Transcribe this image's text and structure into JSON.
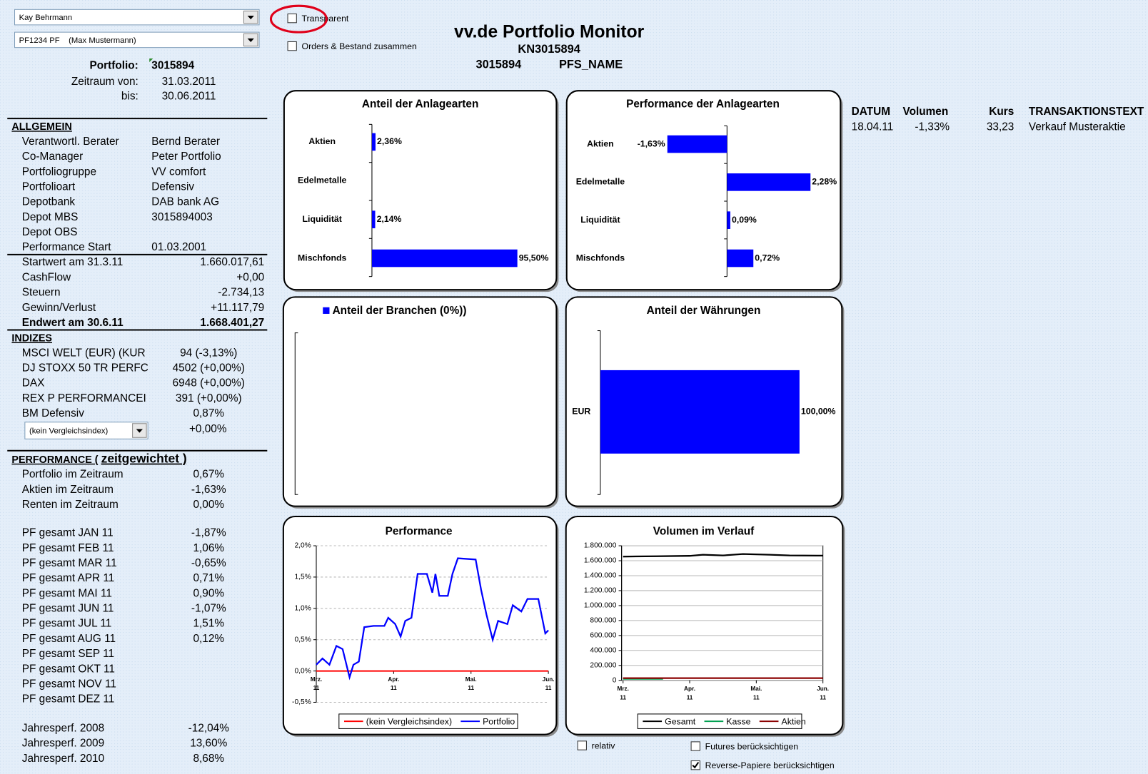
{
  "dropdowns": [
    "Kay Behrmann",
    "PF1234 PF    (Max Mustermann)"
  ],
  "checkboxes": [
    {
      "label": "Transparent",
      "checked": false
    },
    {
      "label": "Orders & Bestand zusammen",
      "checked": false
    },
    {
      "label": "relativ",
      "checked": false
    },
    {
      "label": "Futures berücksichtigen",
      "checked": false
    },
    {
      "label": "Reverse-Papiere berücksichtigen",
      "checked": true
    }
  ],
  "header": {
    "title": "vv.de Portfolio Monitor",
    "account": "KN3015894",
    "portfolio_id": "3015894",
    "portfolio_name": "PFS_NAME"
  },
  "left_panel": {
    "portfolio": [
      [
        "Portfolio:",
        "3015894"
      ],
      [
        "Zeitraum von:",
        "31.03.2011"
      ],
      [
        "bis:",
        "30.06.2011"
      ]
    ],
    "allgemein": {
      "title": "ALLGEMEIN",
      "rows": [
        [
          "Verantwortl. Berater",
          "Bernd Berater"
        ],
        [
          "Co-Manager",
          "Peter Portfolio"
        ],
        [
          "Portfoliogruppe",
          "VV comfort"
        ],
        [
          "Portfolioart",
          "Defensiv"
        ],
        [
          "Depotbank",
          "DAB bank AG"
        ],
        [
          "Depot MBS",
          "3015894003"
        ],
        [
          "Depot OBS"
        ],
        [
          "Performance Start",
          "01.03.2001"
        ]
      ]
    },
    "werte": {
      "rows": [
        [
          "Startwert am 31.3.11",
          "1.660.017,61"
        ],
        [
          "CashFlow",
          "+0,00"
        ],
        [
          "Steuern",
          "-2.734,13"
        ],
        [
          "Gewinn/Verlust",
          "+11.117,79"
        ],
        [
          "Endwert am 30.6.11",
          "1.668.401,27"
        ]
      ]
    },
    "indizes": {
      "title": "INDIZES",
      "rows": [
        [
          "MSCI WELT (EUR) (KUR",
          "94 (-3,13%)"
        ],
        [
          "DJ STOXX 50 TR PERFC",
          "4502 (+0,00%)"
        ],
        [
          "DAX",
          "6948 (+0,00%)"
        ],
        [
          "REX P PERFORMANCEI",
          "391 (+0,00%)"
        ],
        [
          "BM Defensiv",
          "0,87%"
        ]
      ],
      "comparison": {
        "dropdown": "(kein Vergleichsindex)",
        "value": "+0,00%"
      }
    },
    "performance": {
      "title": "PERFORMANCE (",
      "title_suffix": "zeitgewichtet )",
      "rows": [
        [
          "Portfolio im Zeitraum",
          "0,67%"
        ],
        [
          "Aktien im Zeitraum",
          "-1,63%"
        ],
        [
          "Renten im Zeitraum",
          "0,00%"
        ]
      ],
      "monthly": [
        [
          "PF gesamt JAN 11",
          "-1,87%"
        ],
        [
          "PF gesamt FEB 11",
          "1,06%"
        ],
        [
          "PF gesamt MAR 11",
          "-0,65%"
        ],
        [
          "PF gesamt APR 11",
          "0,71%"
        ],
        [
          "PF gesamt MAI 11",
          "0,90%"
        ],
        [
          "PF gesamt JUN 11",
          "-1,07%"
        ],
        [
          "PF gesamt JUL 11",
          "1,51%"
        ],
        [
          "PF gesamt AUG 11",
          "0,12%"
        ],
        [
          "PF gesamt SEP 11"
        ],
        [
          "PF gesamt OKT 11"
        ],
        [
          "PF gesamt NOV 11"
        ],
        [
          "PF gesamt DEZ 11"
        ]
      ],
      "yearly": [
        [
          "Jahresperf. 2008",
          "-12,04%"
        ],
        [
          "Jahresperf. 2009",
          "13,60%"
        ],
        [
          "Jahresperf. 2010",
          "8,68%"
        ]
      ]
    }
  },
  "transactions": {
    "columns": [
      "DATUM",
      "Volumen",
      "Kurs",
      "TRANSAKTIONSTEXT"
    ],
    "rows": [
      [
        "18.04.11",
        "-1,33%",
        "33,23",
        "Verkauf Musteraktie"
      ]
    ]
  },
  "chart_data": [
    {
      "type": "bar",
      "orientation": "horizontal",
      "title": "Anteil der Anlagearten",
      "categories": [
        "Aktien",
        "Edelmetalle",
        "Liquidität",
        "Mischfonds"
      ],
      "values": [
        2.36,
        0,
        2.14,
        95.5
      ],
      "value_labels": [
        "2,36%",
        null,
        "2,14%",
        "95,50%"
      ],
      "color": "#0000ff",
      "xlim": [
        0,
        100
      ]
    },
    {
      "type": "bar",
      "orientation": "horizontal",
      "title": "Performance der Anlagearten",
      "categories": [
        "Aktien",
        "Edelmetalle",
        "Liquidität",
        "Mischfonds"
      ],
      "values": [
        -1.63,
        2.28,
        0.09,
        0.72
      ],
      "value_labels": [
        "-1,63%",
        "2,28%",
        "0,09%",
        "0,72%"
      ],
      "color": "#0000ff",
      "xlim": [
        -1.8,
        2.9
      ]
    },
    {
      "type": "bar",
      "orientation": "horizontal",
      "categories": [],
      "series": [
        {
          "name": "Anteil der Branchen (0%))",
          "color": "#0000ff",
          "values": []
        }
      ]
    },
    {
      "type": "bar",
      "orientation": "horizontal",
      "title": "Anteil der Währungen",
      "categories": [
        "EUR"
      ],
      "values": [
        100
      ],
      "value_labels": [
        "100,00%"
      ],
      "color": "#0000ff",
      "xlim": [
        0,
        100
      ]
    },
    {
      "type": "line",
      "title": "Performance",
      "grid": true,
      "xlim": [
        0,
        3
      ],
      "xticks": [
        {
          "value": 0,
          "label": "Mrz. 11"
        },
        {
          "value": 1,
          "label": "Apr. 11"
        },
        {
          "value": 2,
          "label": "Mai. 11"
        },
        {
          "value": 3,
          "label": "Jun. 11"
        }
      ],
      "ylim": [
        -0.5,
        2.0
      ],
      "yticks": [
        {
          "value": 2.0,
          "label": "2,0%"
        },
        {
          "value": 1.5,
          "label": "1,5%"
        },
        {
          "value": 1.0,
          "label": "1,0%"
        },
        {
          "value": 0.5,
          "label": "0,5%"
        },
        {
          "value": 0,
          "label": "0,0%"
        },
        {
          "value": -0.5,
          "label": "-0,5%"
        }
      ],
      "series": [
        {
          "name": "(kein Vergleichsindex)",
          "color": "#ff0000",
          "x": [
            0,
            3
          ],
          "values": [
            0,
            0
          ]
        },
        {
          "name": "Portfolio",
          "color": "#0000ff",
          "x": [
            0,
            0.08,
            0.17,
            0.26,
            0.34,
            0.43,
            0.48,
            0.55,
            0.62,
            0.74,
            0.88,
            0.93,
            1.02,
            1.09,
            1.15,
            1.23,
            1.31,
            1.43,
            1.5,
            1.54,
            1.59,
            1.7,
            1.76,
            1.83,
            2.06,
            2.13,
            2.2,
            2.28,
            2.35,
            2.47,
            2.54,
            2.65,
            2.73,
            2.87,
            2.96,
            3
          ],
          "values": [
            0.1,
            0.2,
            0.1,
            0.4,
            0.35,
            -0.1,
            0.1,
            0.15,
            0.7,
            0.72,
            0.72,
            0.85,
            0.75,
            0.55,
            0.8,
            0.85,
            1.55,
            1.55,
            1.25,
            1.55,
            1.2,
            1.2,
            1.55,
            1.8,
            1.78,
            1.3,
            0.9,
            0.5,
            0.8,
            0.75,
            1.05,
            0.95,
            1.15,
            1.15,
            0.6,
            0.65
          ]
        }
      ]
    },
    {
      "type": "line",
      "title": "Volumen im Verlauf",
      "grid": true,
      "xlim": [
        0,
        3
      ],
      "xticks": [
        {
          "value": 0,
          "label": "Mrz. 11"
        },
        {
          "value": 1,
          "label": "Apr. 11"
        },
        {
          "value": 2,
          "label": "Mai. 11"
        },
        {
          "value": 3,
          "label": "Jun. 11"
        }
      ],
      "ylim": [
        0,
        1800000
      ],
      "yticks": [
        {
          "value": 1800000,
          "label": "1.800.000"
        },
        {
          "value": 1600000,
          "label": "1.600.000"
        },
        {
          "value": 1400000,
          "label": "1.400.000"
        },
        {
          "value": 1200000,
          "label": "1.200.000"
        },
        {
          "value": 1000000,
          "label": "1.000.000"
        },
        {
          "value": 800000,
          "label": "800.000"
        },
        {
          "value": 600000,
          "label": "600.000"
        },
        {
          "value": 400000,
          "label": "400.000"
        },
        {
          "value": 200000,
          "label": "200.000"
        },
        0
      ],
      "series": [
        {
          "name": "Gesamt",
          "color": "#000000",
          "x": [
            0,
            0.5,
            1.0,
            1.2,
            1.5,
            1.8,
            2.2,
            2.5,
            3
          ],
          "values": [
            1655000,
            1660000,
            1665000,
            1680000,
            1670000,
            1690000,
            1680000,
            1670000,
            1668000
          ]
        },
        {
          "name": "Kasse",
          "color": "#00a050",
          "x": [
            0,
            0.6
          ],
          "values": [
            20000,
            20000
          ]
        },
        {
          "name": "Aktien",
          "color": "#8b0000",
          "x": [
            0,
            3
          ],
          "values": [
            30000,
            30000
          ]
        }
      ]
    }
  ]
}
